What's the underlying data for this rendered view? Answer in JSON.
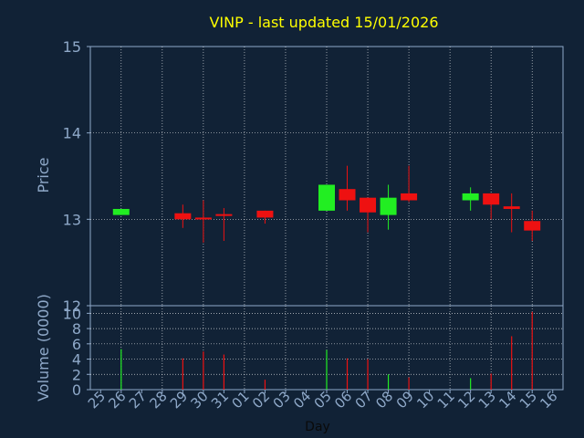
{
  "chart_data": [
    {
      "type": "candlestick",
      "title": "VINP - last updated 15/01/2026",
      "ylabel": "Price",
      "ylim": [
        12,
        15
      ],
      "yticks": [
        "12",
        "13",
        "14",
        "15"
      ],
      "grid": true,
      "colors": {
        "up": "#22ee22",
        "down": "#ee1111",
        "background": "#112236",
        "grid": "#ffffff",
        "axis": "#8fa9c9",
        "title": "#ffff00"
      },
      "categories": [
        "25",
        "26",
        "27",
        "28",
        "29",
        "30",
        "31",
        "01",
        "02",
        "03",
        "04",
        "05",
        "06",
        "07",
        "08",
        "09",
        "10",
        "11",
        "12",
        "13",
        "14",
        "15",
        "16"
      ],
      "candles": [
        {
          "x": "26",
          "open": 13.05,
          "high": 13.12,
          "low": 13.05,
          "close": 13.12
        },
        {
          "x": "29",
          "open": 13.07,
          "high": 13.17,
          "low": 12.9,
          "close": 13.0
        },
        {
          "x": "30",
          "open": 13.02,
          "high": 13.22,
          "low": 12.73,
          "close": 13.0
        },
        {
          "x": "31",
          "open": 13.06,
          "high": 13.13,
          "low": 12.75,
          "close": 13.05
        },
        {
          "x": "02",
          "open": 13.1,
          "high": 13.1,
          "low": 12.95,
          "close": 13.02
        },
        {
          "x": "05",
          "open": 13.1,
          "high": 13.4,
          "low": 13.1,
          "close": 13.4
        },
        {
          "x": "06",
          "open": 13.35,
          "high": 13.62,
          "low": 13.1,
          "close": 13.22
        },
        {
          "x": "07",
          "open": 13.25,
          "high": 13.25,
          "low": 12.85,
          "close": 13.08
        },
        {
          "x": "08",
          "open": 13.05,
          "high": 13.4,
          "low": 12.88,
          "close": 13.25
        },
        {
          "x": "09",
          "open": 13.3,
          "high": 13.62,
          "low": 13.2,
          "close": 13.22
        },
        {
          "x": "12",
          "open": 13.22,
          "high": 13.37,
          "low": 13.1,
          "close": 13.3
        },
        {
          "x": "13",
          "open": 13.3,
          "high": 13.3,
          "low": 13.0,
          "close": 13.17
        },
        {
          "x": "14",
          "open": 13.15,
          "high": 13.3,
          "low": 12.85,
          "close": 13.12
        },
        {
          "x": "15",
          "open": 12.98,
          "high": 13.1,
          "low": 12.75,
          "close": 12.87
        }
      ]
    },
    {
      "type": "bar",
      "ylabel": "Volume (0000)",
      "xlabel": "Day",
      "ylim": [
        0,
        11
      ],
      "yticks": [
        "0",
        "2",
        "4",
        "6",
        "8",
        "10"
      ],
      "categories": [
        "25",
        "26",
        "27",
        "28",
        "29",
        "30",
        "31",
        "01",
        "02",
        "03",
        "04",
        "05",
        "06",
        "07",
        "08",
        "09",
        "10",
        "11",
        "12",
        "13",
        "14",
        "15",
        "16"
      ],
      "bars": [
        {
          "x": "26",
          "value": 5.3,
          "direction": "up"
        },
        {
          "x": "29",
          "value": 4.1,
          "direction": "down"
        },
        {
          "x": "30",
          "value": 5.0,
          "direction": "down"
        },
        {
          "x": "31",
          "value": 4.6,
          "direction": "down"
        },
        {
          "x": "02",
          "value": 1.3,
          "direction": "down"
        },
        {
          "x": "05",
          "value": 5.2,
          "direction": "up"
        },
        {
          "x": "06",
          "value": 4.1,
          "direction": "down"
        },
        {
          "x": "07",
          "value": 4.0,
          "direction": "down"
        },
        {
          "x": "08",
          "value": 2.0,
          "direction": "up"
        },
        {
          "x": "09",
          "value": 1.6,
          "direction": "down"
        },
        {
          "x": "12",
          "value": 1.5,
          "direction": "up"
        },
        {
          "x": "13",
          "value": 2.1,
          "direction": "down"
        },
        {
          "x": "14",
          "value": 7.0,
          "direction": "down"
        },
        {
          "x": "15",
          "value": 10.2,
          "direction": "down"
        }
      ]
    }
  ]
}
